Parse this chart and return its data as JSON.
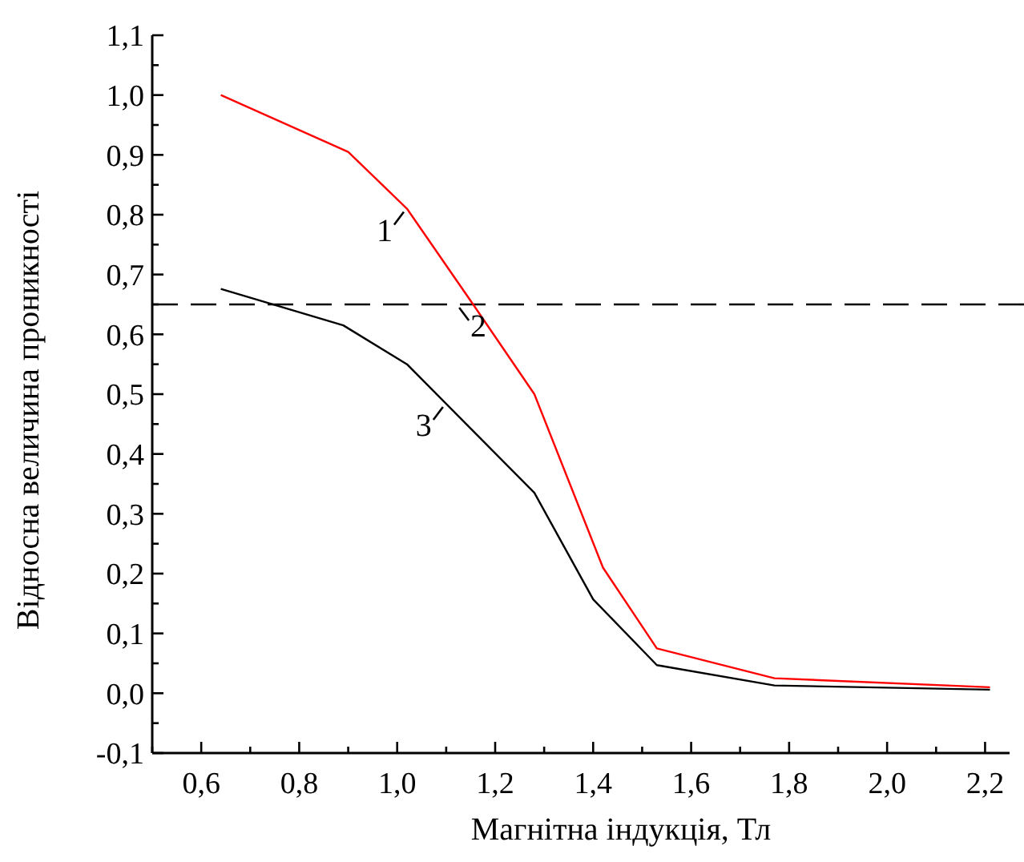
{
  "chart_data": {
    "type": "line",
    "xlabel": "Магнітна індукція, Тл",
    "ylabel": "Відносна величина проникності",
    "x": [
      0.64,
      0.9,
      1.02,
      1.155,
      1.28,
      1.42,
      1.53,
      1.77,
      2.21
    ],
    "series": [
      {
        "color": "#ff0000",
        "values": [
          1.0,
          0.905,
          0.81,
          0.65,
          0.5,
          0.21,
          0.075,
          0.025,
          0.01
        ]
      },
      {
        "color": "#000000",
        "x": [
          0.64,
          0.89,
          1.02,
          1.28,
          1.4,
          1.53,
          1.77,
          2.21
        ],
        "values": [
          0.676,
          0.615,
          0.55,
          0.335,
          0.157,
          0.047,
          0.013,
          0.006
        ]
      }
    ],
    "ref_lines": [
      {
        "axis": "y",
        "value": 0.65,
        "color": "#000000",
        "line_style": "dashed"
      }
    ],
    "annotations": [
      {
        "text": "1",
        "x": 1.02,
        "y": 0.81
      },
      {
        "text": "2",
        "x": 1.12,
        "y": 0.65
      },
      {
        "text": "3",
        "x": 1.1,
        "y": 0.484
      }
    ],
    "xlim": [
      0.5,
      2.25
    ],
    "xticks": [
      {
        "value": 0.5,
        "label": null
      },
      {
        "value": 0.6,
        "label": "0,6"
      },
      {
        "value": 0.7,
        "label": null
      },
      {
        "value": 0.8,
        "label": "0,8"
      },
      {
        "value": 0.9,
        "label": null
      },
      {
        "value": 1.0,
        "label": "1,0"
      },
      {
        "value": 1.1,
        "label": null
      },
      {
        "value": 1.2,
        "label": "1,2"
      },
      {
        "value": 1.3,
        "label": null
      },
      {
        "value": 1.4,
        "label": "1,4"
      },
      {
        "value": 1.5,
        "label": null
      },
      {
        "value": 1.6,
        "label": "1,6"
      },
      {
        "value": 1.7,
        "label": null
      },
      {
        "value": 1.8,
        "label": "1,8"
      },
      {
        "value": 1.9,
        "label": null
      },
      {
        "value": 2.0,
        "label": "2,0"
      },
      {
        "value": 2.1,
        "label": null
      },
      {
        "value": 2.2,
        "label": "2,2"
      }
    ],
    "ylim": [
      -0.1,
      1.1
    ],
    "yticks": [
      {
        "value": -0.1,
        "label": "-0,1"
      },
      {
        "value": -0.05,
        "label": null
      },
      {
        "value": 0,
        "label": "0,0"
      },
      {
        "value": 0.05,
        "label": null
      },
      {
        "value": 0.1,
        "label": "0,1"
      },
      {
        "value": 0.15,
        "label": null
      },
      {
        "value": 0.2,
        "label": "0,2"
      },
      {
        "value": 0.25,
        "label": null
      },
      {
        "value": 0.3,
        "label": "0,3"
      },
      {
        "value": 0.35,
        "label": null
      },
      {
        "value": 0.4,
        "label": "0,4"
      },
      {
        "value": 0.45,
        "label": null
      },
      {
        "value": 0.5,
        "label": "0,5"
      },
      {
        "value": 0.55,
        "label": null
      },
      {
        "value": 0.6,
        "label": "0,6"
      },
      {
        "value": 0.65,
        "label": null
      },
      {
        "value": 0.7,
        "label": "0,7"
      },
      {
        "value": 0.75,
        "label": null
      },
      {
        "value": 0.8,
        "label": "0,8"
      },
      {
        "value": 0.85,
        "label": null
      },
      {
        "value": 0.9,
        "label": "0,9"
      },
      {
        "value": 0.95,
        "label": null
      },
      {
        "value": 1.0,
        "label": "1,0"
      },
      {
        "value": 1.05,
        "label": null
      },
      {
        "value": 1.1,
        "label": "1,1"
      }
    ],
    "grid": false,
    "marker": "none",
    "line_style": "solid"
  }
}
